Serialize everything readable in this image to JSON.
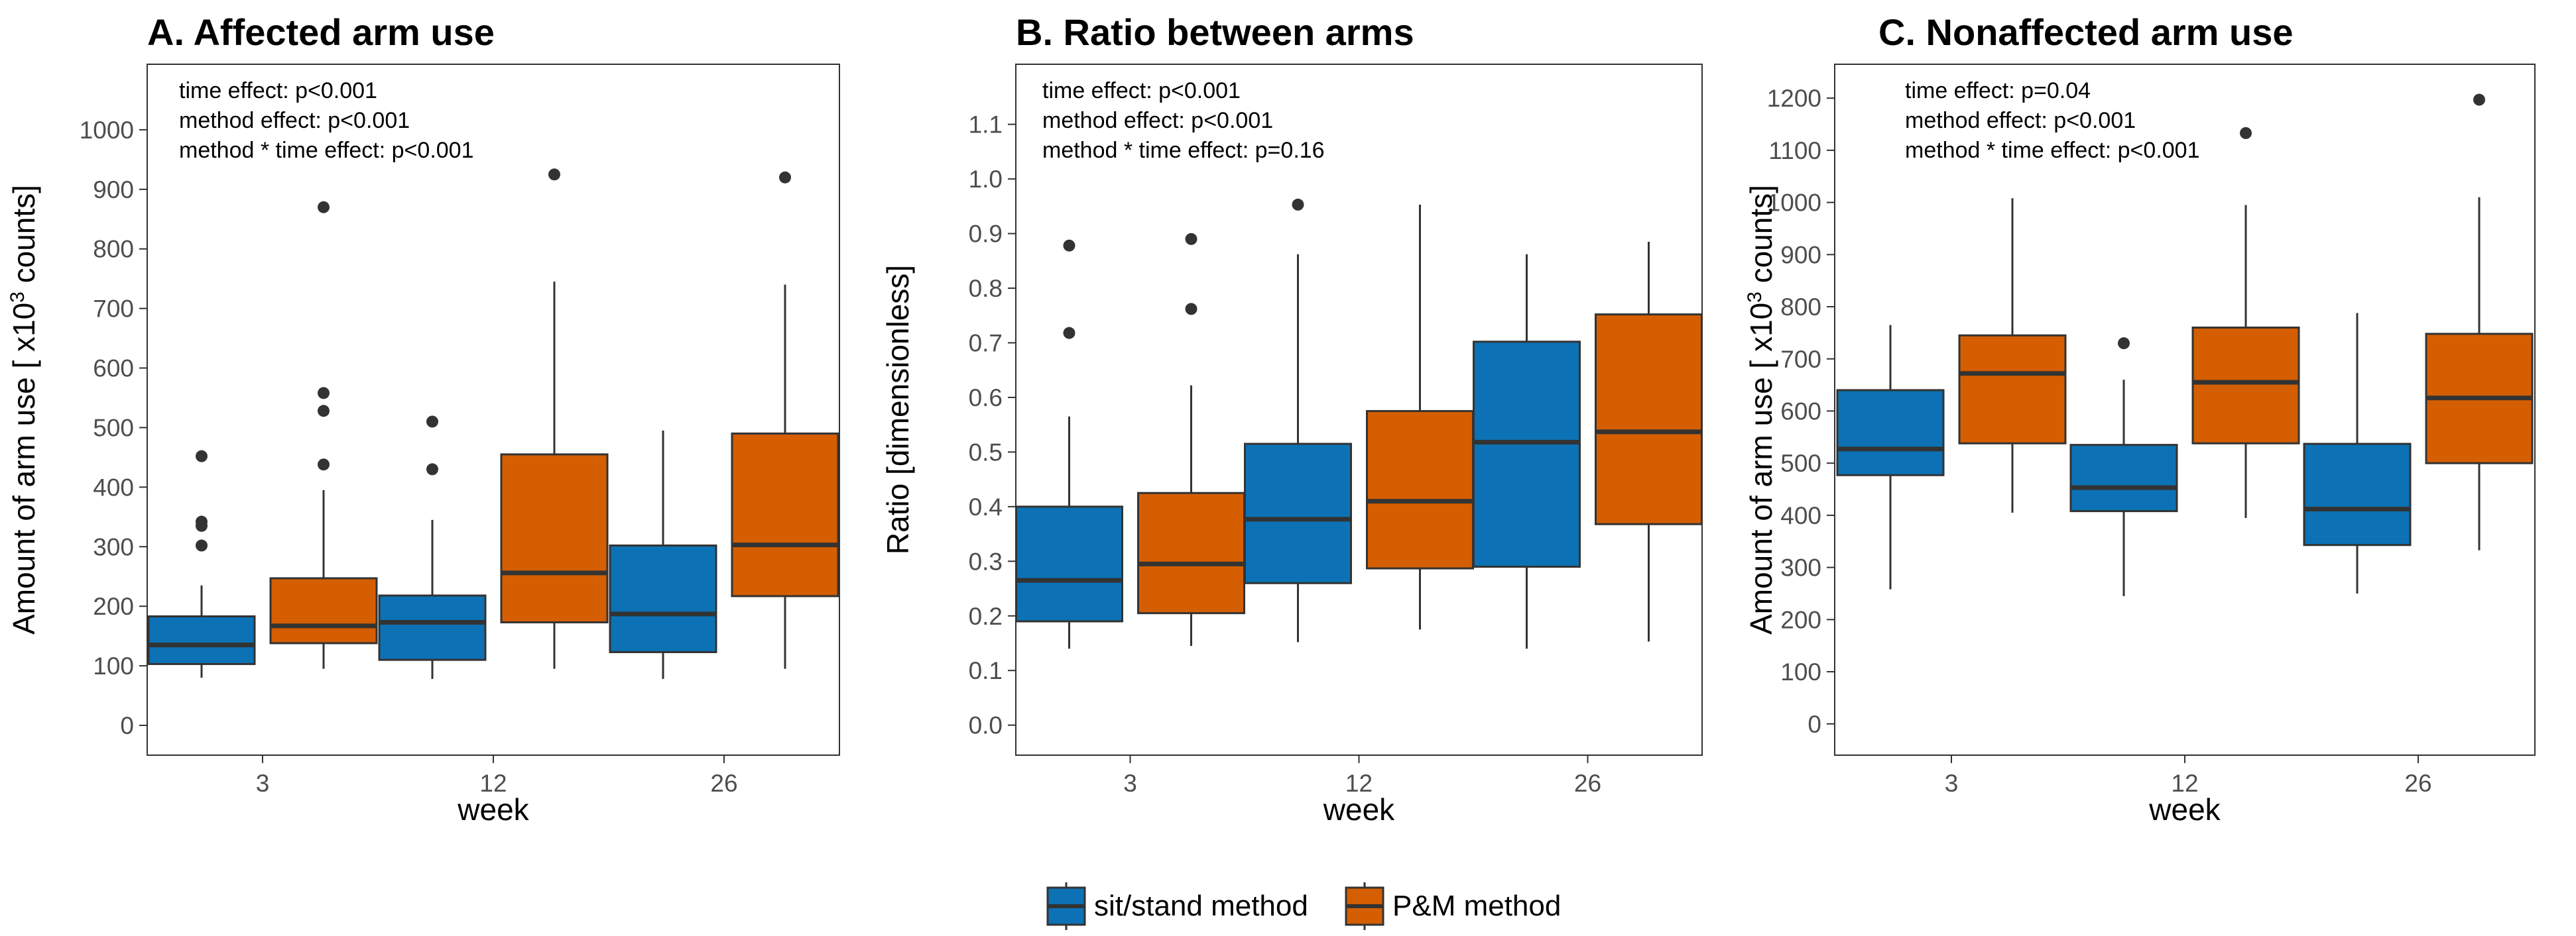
{
  "legend": {
    "items": [
      {
        "label": "sit/stand method",
        "color": "#0C72B5"
      },
      {
        "label": "P&M method",
        "color": "#D55E00"
      }
    ]
  },
  "chart_data": [
    {
      "type": "box",
      "title": "A. Affected arm use",
      "xlabel": "week",
      "ylabel": "Amount of arm use [ x10³ counts]",
      "ylabel_parts": {
        "main": "Amount of arm use [ x10",
        "sup": "3",
        "end": " counts]"
      },
      "ylim": [
        -50,
        1110
      ],
      "yticks": [
        0,
        100,
        200,
        300,
        400,
        500,
        600,
        700,
        800,
        900,
        1000
      ],
      "categories": [
        "3",
        "12",
        "26"
      ],
      "annotations": [
        "time effect: p<0.001",
        "method effect: p<0.001",
        "method * time effect: p<0.001"
      ],
      "series": [
        {
          "name": "sit/stand method",
          "boxes": [
            {
              "min": 80,
              "q1": 103,
              "median": 135,
              "q3": 183,
              "max": 235,
              "outliers": [
                302,
                335,
                342,
                452
              ]
            },
            {
              "min": 78,
              "q1": 110,
              "median": 173,
              "q3": 218,
              "max": 345,
              "outliers": [
                430,
                510
              ]
            },
            {
              "min": 78,
              "q1": 123,
              "median": 187,
              "q3": 302,
              "max": 495,
              "outliers": []
            }
          ]
        },
        {
          "name": "P&M method",
          "boxes": [
            {
              "min": 95,
              "q1": 138,
              "median": 167,
              "q3": 247,
              "max": 395,
              "outliers": [
                438,
                528,
                558,
                870
              ]
            },
            {
              "min": 95,
              "q1": 173,
              "median": 256,
              "q3": 455,
              "max": 745,
              "outliers": [
                925
              ]
            },
            {
              "min": 95,
              "q1": 217,
              "median": 303,
              "q3": 490,
              "max": 740,
              "outliers": [
                920
              ]
            }
          ]
        }
      ]
    },
    {
      "type": "box",
      "title": "B. Ratio between arms",
      "xlabel": "week",
      "ylabel": "Ratio [dimensionless]",
      "ylim": [
        -0.055,
        1.21
      ],
      "yticks": [
        0.0,
        0.1,
        0.2,
        0.3,
        0.4,
        0.5,
        0.6,
        0.7,
        0.8,
        0.9,
        1.0,
        1.1
      ],
      "categories": [
        "3",
        "12",
        "26"
      ],
      "annotations": [
        "time effect: p<0.001",
        "method effect: p<0.001",
        "method * time effect: p=0.16"
      ],
      "series": [
        {
          "name": "sit/stand method",
          "boxes": [
            {
              "min": 0.14,
              "q1": 0.19,
              "median": 0.265,
              "q3": 0.4,
              "max": 0.565,
              "outliers": [
                0.718,
                0.878
              ]
            },
            {
              "min": 0.152,
              "q1": 0.26,
              "median": 0.377,
              "q3": 0.515,
              "max": 0.862,
              "outliers": [
                0.953
              ]
            },
            {
              "min": 0.14,
              "q1": 0.29,
              "median": 0.518,
              "q3": 0.702,
              "max": 0.862,
              "outliers": []
            }
          ]
        },
        {
          "name": "P&M method",
          "boxes": [
            {
              "min": 0.145,
              "q1": 0.205,
              "median": 0.295,
              "q3": 0.425,
              "max": 0.622,
              "outliers": [
                0.762,
                0.89
              ]
            },
            {
              "min": 0.175,
              "q1": 0.287,
              "median": 0.41,
              "q3": 0.575,
              "max": 0.953,
              "outliers": []
            },
            {
              "min": 0.153,
              "q1": 0.368,
              "median": 0.537,
              "q3": 0.752,
              "max": 0.885,
              "outliers": []
            }
          ]
        }
      ]
    },
    {
      "type": "box",
      "title": "C. Nonaffected arm use",
      "xlabel": "week",
      "ylabel": "Amount of arm use [ x10³ counts]",
      "ylabel_parts": {
        "main": "Amount of arm use [ x10",
        "sup": "3",
        "end": " counts]"
      },
      "ylim": [
        -60,
        1265
      ],
      "yticks": [
        0,
        100,
        200,
        300,
        400,
        500,
        600,
        700,
        800,
        900,
        1000,
        1100,
        1200
      ],
      "categories": [
        "3",
        "12",
        "26"
      ],
      "annotations": [
        "time effect: p=0.04",
        "method effect: p<0.001",
        "method * time effect: p<0.001"
      ],
      "series": [
        {
          "name": "sit/stand method",
          "boxes": [
            {
              "min": 258,
              "q1": 477,
              "median": 527,
              "q3": 640,
              "max": 765,
              "outliers": []
            },
            {
              "min": 245,
              "q1": 408,
              "median": 453,
              "q3": 535,
              "max": 660,
              "outliers": [
                730
              ]
            },
            {
              "min": 250,
              "q1": 343,
              "median": 412,
              "q3": 537,
              "max": 788,
              "outliers": []
            }
          ]
        },
        {
          "name": "P&M method",
          "boxes": [
            {
              "min": 405,
              "q1": 538,
              "median": 672,
              "q3": 745,
              "max": 1008,
              "outliers": []
            },
            {
              "min": 395,
              "q1": 538,
              "median": 655,
              "q3": 760,
              "max": 995,
              "outliers": [
                1133
              ]
            },
            {
              "min": 333,
              "q1": 500,
              "median": 625,
              "q3": 748,
              "max": 1010,
              "outliers": [
                1197
              ]
            }
          ]
        }
      ]
    }
  ]
}
